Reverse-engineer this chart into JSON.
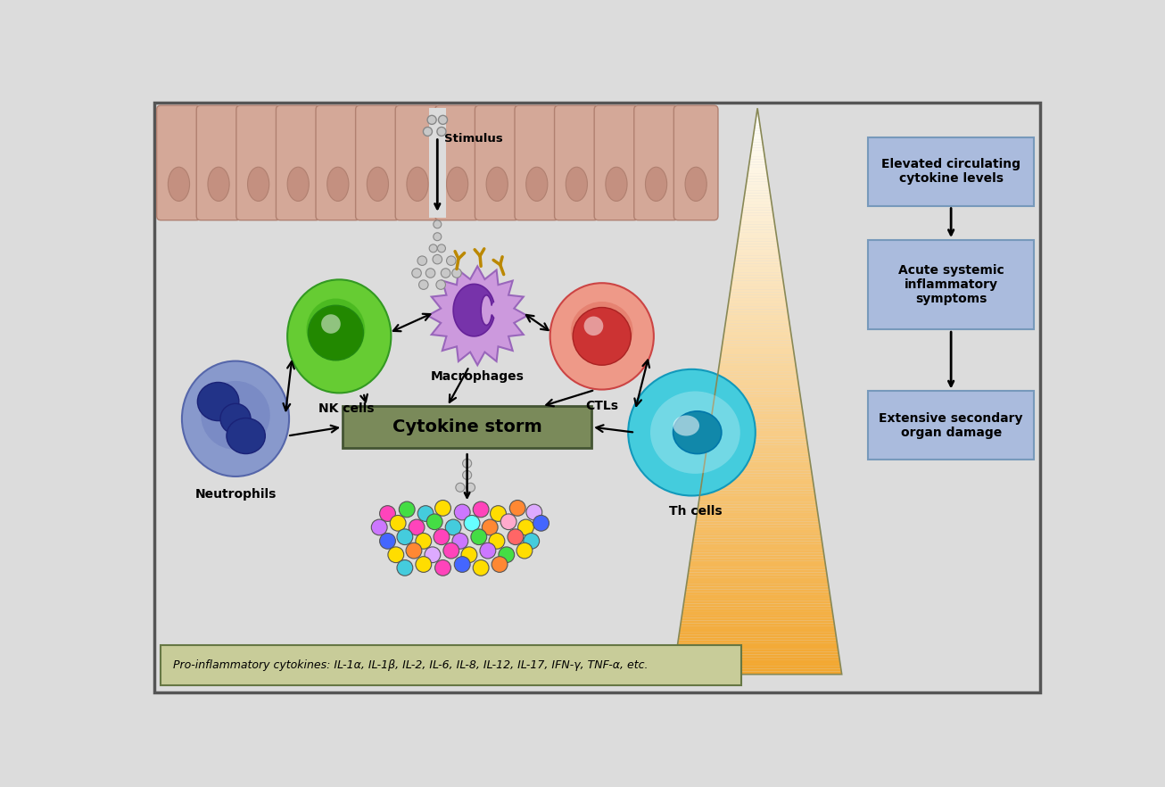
{
  "bg_color": "#dcdcdc",
  "epithelial_color": "#d4a898",
  "epithelial_nucleus_color": "#c49080",
  "epithelial_edge": "#b08070",
  "nk_cell_outer": "#66cc33",
  "nk_cell_inner": "#33aa11",
  "nk_nucleus_color": "#228800",
  "macrophage_outer": "#cc99dd",
  "macrophage_inner": "#bb77cc",
  "macrophage_nucleus": "#7733aa",
  "ctl_outer": "#ee9988",
  "ctl_inner": "#dd6655",
  "ctl_nucleus": "#cc3333",
  "neutrophil_outer": "#8899cc",
  "neutrophil_inner": "#6677bb",
  "neutrophil_nucleus": "#223388",
  "th_outer": "#44ccdd",
  "th_inner": "#22aacc",
  "th_nucleus": "#1188aa",
  "cytokine_storm_box_color": "#7a8a5a",
  "cytokine_storm_text": "Cytokine storm",
  "cytokine_box_bg": "#c8cc99",
  "cytokine_box_edge": "#667744",
  "cytokine_box_text": "Pro-inflammatory cytokines: IL-1α, IL-1β, IL-2, IL-6, IL-8, IL-12, IL-17, IFN-γ, TNF-α, etc.",
  "right_box1_text": "Elevated circulating\ncytokine levels",
  "right_box2_text": "Acute systemic\ninflammatory\nsymptoms",
  "right_box3_text": "Extensive secondary\norgan damage",
  "right_box_color": "#aabbdd",
  "right_box_edge": "#7799bb",
  "stimulus_text": "Stimulus",
  "cytokine_dot_colors": [
    "#ffdd00",
    "#ff44bb",
    "#44ccdd",
    "#cc77ff",
    "#ff8833",
    "#44dd44",
    "#4466ff",
    "#ffaacc",
    "#aaffcc",
    "#ddaaff",
    "#ff6666",
    "#66ffff"
  ],
  "labels": {
    "nk_cells": "NK cells",
    "macrophages": "Macrophages",
    "ctls": "CTLs",
    "neutrophils": "Neutrophils",
    "th_cells": "Th cells"
  }
}
